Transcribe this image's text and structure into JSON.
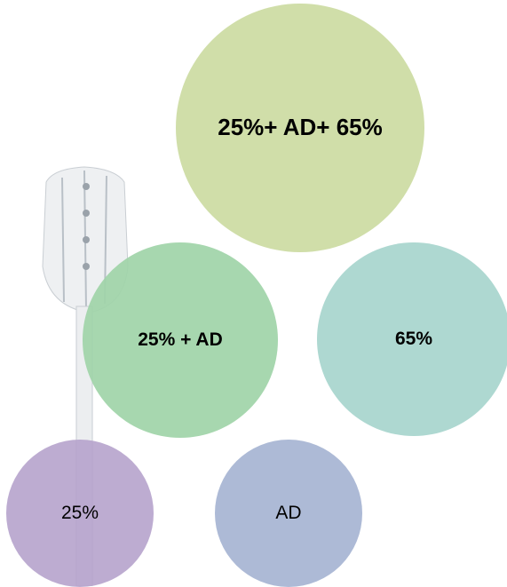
{
  "nodes": [
    {
      "label": "25%+ AD+ 65%"
    },
    {
      "label": "25% + AD"
    },
    {
      "label": "65%"
    },
    {
      "label": "25%"
    },
    {
      "label": "AD"
    }
  ]
}
